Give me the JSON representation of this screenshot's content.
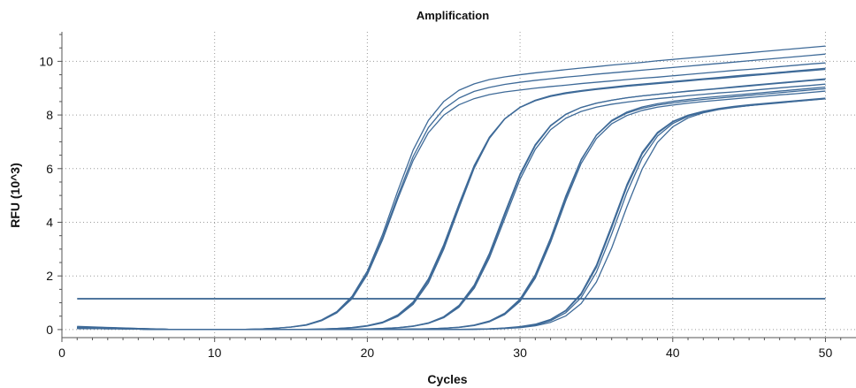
{
  "chart_data": {
    "type": "line",
    "title": "Amplification",
    "xlabel": "Cycles",
    "ylabel": "RFU (10^3)",
    "xlim": [
      0,
      52
    ],
    "ylim": [
      -0.3,
      11.1
    ],
    "xticks": [
      0,
      10,
      20,
      30,
      40,
      50
    ],
    "yticks": [
      0,
      2,
      4,
      6,
      8,
      10
    ],
    "grid": true,
    "legend": "none",
    "colors": {
      "curve": "#3e6a98",
      "threshold": "#15487f",
      "grid": "#9a9a9a",
      "axis": "#555555"
    },
    "threshold": {
      "value": 1.15,
      "x_range": [
        1,
        50
      ]
    },
    "x": [
      1,
      2,
      3,
      4,
      5,
      6,
      7,
      8,
      9,
      10,
      11,
      12,
      13,
      14,
      15,
      16,
      17,
      18,
      19,
      20,
      21,
      22,
      23,
      24,
      25,
      26,
      27,
      28,
      29,
      30,
      31,
      32,
      33,
      34,
      35,
      36,
      37,
      38,
      39,
      40,
      41,
      42,
      43,
      44,
      45,
      46,
      47,
      48,
      49,
      50
    ],
    "series": [
      {
        "values": [
          0.1,
          0.08,
          0.07,
          0.05,
          0.04,
          0.02,
          0.01,
          0,
          0,
          0,
          0,
          0.01,
          0.02,
          0.05,
          0.09,
          0.17,
          0.34,
          0.64,
          1.19,
          2.1,
          3.43,
          4.99,
          6.45,
          7.53,
          8.22,
          8.63,
          8.88,
          9.03,
          9.14,
          9.22,
          9.29,
          9.35,
          9.41,
          9.46,
          9.52,
          9.57,
          9.62,
          9.67,
          9.72,
          9.77,
          9.82,
          9.87,
          9.92,
          9.97,
          10.02,
          10.07,
          10.12,
          10.17,
          10.22,
          10.27
        ]
      },
      {
        "values": [
          0.07,
          0.06,
          0.05,
          0.04,
          0.03,
          0.02,
          0.01,
          0,
          0,
          0,
          0,
          0.01,
          0.02,
          0.05,
          0.1,
          0.18,
          0.36,
          0.67,
          1.24,
          2.18,
          3.55,
          5.18,
          6.69,
          7.8,
          8.5,
          8.92,
          9.16,
          9.32,
          9.42,
          9.5,
          9.57,
          9.63,
          9.69,
          9.75,
          9.8,
          9.86,
          9.91,
          9.96,
          10.02,
          10.07,
          10.12,
          10.17,
          10.22,
          10.27,
          10.32,
          10.37,
          10.42,
          10.47,
          10.52,
          10.57
        ]
      },
      {
        "values": [
          0.12,
          0.1,
          0.08,
          0.06,
          0.04,
          0.03,
          0.01,
          0,
          0,
          0,
          0,
          0.01,
          0.02,
          0.05,
          0.09,
          0.16,
          0.33,
          0.62,
          1.15,
          2.05,
          3.35,
          4.88,
          6.3,
          7.34,
          7.99,
          8.38,
          8.61,
          8.76,
          8.86,
          8.93,
          9,
          9.06,
          9.11,
          9.17,
          9.22,
          9.27,
          9.32,
          9.37,
          9.41,
          9.46,
          9.51,
          9.56,
          9.61,
          9.66,
          9.7,
          9.75,
          9.8,
          9.85,
          9.9,
          9.94
        ]
      },
      {
        "values": [
          0.05,
          0.05,
          0.04,
          0.03,
          0.02,
          0.01,
          0,
          0,
          0,
          0,
          0,
          0,
          0,
          0,
          0,
          0.01,
          0.02,
          0.04,
          0.08,
          0.15,
          0.28,
          0.55,
          1.03,
          1.89,
          3.16,
          4.68,
          6.12,
          7.18,
          7.86,
          8.28,
          8.53,
          8.69,
          8.8,
          8.88,
          8.95,
          9.01,
          9.07,
          9.12,
          9.17,
          9.22,
          9.27,
          9.32,
          9.36,
          9.41,
          9.46,
          9.51,
          9.56,
          9.61,
          9.65,
          9.7
        ]
      },
      {
        "values": [
          0.05,
          0.04,
          0.04,
          0.03,
          0.02,
          0.01,
          0,
          0,
          0,
          0,
          0,
          0,
          0,
          0,
          0,
          0.01,
          0.02,
          0.04,
          0.07,
          0.14,
          0.27,
          0.53,
          0.99,
          1.82,
          3.08,
          4.6,
          6.06,
          7.15,
          7.86,
          8.29,
          8.55,
          8.72,
          8.83,
          8.91,
          8.98,
          9.04,
          9.1,
          9.15,
          9.2,
          9.25,
          9.3,
          9.35,
          9.4,
          9.45,
          9.5,
          9.54,
          9.59,
          9.64,
          9.69,
          9.74
        ]
      },
      {
        "values": [
          0.05,
          0.04,
          0.04,
          0.03,
          0.02,
          0.01,
          0,
          0,
          0,
          0,
          0,
          0,
          0,
          0,
          0,
          0.01,
          0.01,
          0.03,
          0.06,
          0.13,
          0.25,
          0.49,
          0.94,
          1.74,
          2.99,
          4.53,
          6.02,
          7.13,
          7.85,
          8.28,
          8.54,
          8.71,
          8.82,
          8.9,
          8.96,
          9.02,
          9.08,
          9.13,
          9.18,
          9.23,
          9.28,
          9.33,
          9.38,
          9.43,
          9.47,
          9.52,
          9.57,
          9.62,
          9.67,
          9.71
        ]
      },
      {
        "values": [
          0.09,
          0.08,
          0.06,
          0.05,
          0.03,
          0.02,
          0.01,
          0,
          0,
          0,
          0,
          0,
          0,
          0,
          0,
          0,
          0,
          0,
          0.01,
          0.02,
          0.04,
          0.07,
          0.13,
          0.25,
          0.48,
          0.9,
          1.66,
          2.85,
          4.35,
          5.8,
          6.9,
          7.61,
          8.03,
          8.28,
          8.44,
          8.55,
          8.64,
          8.71,
          8.77,
          8.83,
          8.89,
          8.94,
          8.99,
          9.05,
          9.1,
          9.15,
          9.2,
          9.25,
          9.3,
          9.35
        ]
      },
      {
        "values": [
          0.07,
          0.06,
          0.05,
          0.04,
          0.03,
          0.02,
          0.01,
          0,
          0,
          0,
          0,
          0,
          0,
          0,
          0,
          0,
          0,
          0,
          0.01,
          0.02,
          0.04,
          0.07,
          0.13,
          0.24,
          0.46,
          0.86,
          1.6,
          2.77,
          4.27,
          5.74,
          6.86,
          7.59,
          8.02,
          8.28,
          8.44,
          8.55,
          8.64,
          8.71,
          8.77,
          8.83,
          8.88,
          8.93,
          8.98,
          9.03,
          9.08,
          9.13,
          9.18,
          9.23,
          9.28,
          9.32
        ]
      },
      {
        "values": [
          0.05,
          0.05,
          0.04,
          0.03,
          0.02,
          0.01,
          0,
          0,
          0,
          0,
          0,
          0,
          0,
          0,
          0,
          0,
          0,
          0,
          0.01,
          0.02,
          0.03,
          0.06,
          0.12,
          0.23,
          0.44,
          0.83,
          1.54,
          2.68,
          4.14,
          5.6,
          6.72,
          7.45,
          7.88,
          8.13,
          8.29,
          8.4,
          8.48,
          8.55,
          8.61,
          8.66,
          8.72,
          8.77,
          8.82,
          8.86,
          8.91,
          8.96,
          9.01,
          9.06,
          9.1,
          9.15
        ]
      },
      {
        "values": [
          0.04,
          0.04,
          0.03,
          0.03,
          0.02,
          0.01,
          0,
          0,
          0,
          0,
          0,
          0,
          0,
          0,
          0,
          0,
          0,
          0,
          0,
          0,
          0,
          0.01,
          0.02,
          0.03,
          0.05,
          0.09,
          0.17,
          0.32,
          0.61,
          1.14,
          2.05,
          3.41,
          4.99,
          6.34,
          7.24,
          7.77,
          8.07,
          8.25,
          8.37,
          8.45,
          8.52,
          8.58,
          8.63,
          8.68,
          8.73,
          8.78,
          8.83,
          8.88,
          8.93,
          8.98
        ]
      },
      {
        "values": [
          0.04,
          0.04,
          0.03,
          0.03,
          0.02,
          0.01,
          0,
          0,
          0,
          0,
          0,
          0,
          0,
          0,
          0,
          0,
          0,
          0,
          0,
          0,
          0,
          0.01,
          0.02,
          0.03,
          0.05,
          0.08,
          0.16,
          0.31,
          0.59,
          1.1,
          1.99,
          3.34,
          4.92,
          6.31,
          7.25,
          7.8,
          8.11,
          8.3,
          8.42,
          8.51,
          8.58,
          8.64,
          8.69,
          8.74,
          8.79,
          8.84,
          8.89,
          8.94,
          8.99,
          9.04
        ]
      },
      {
        "values": [
          0.06,
          0.05,
          0.04,
          0.03,
          0.02,
          0.01,
          0,
          0,
          0,
          0,
          0,
          0,
          0,
          0,
          0,
          0,
          0,
          0,
          0,
          0,
          0,
          0.01,
          0.02,
          0.03,
          0.05,
          0.08,
          0.15,
          0.29,
          0.56,
          1.05,
          1.92,
          3.25,
          4.81,
          6.19,
          7.12,
          7.67,
          7.98,
          8.17,
          8.29,
          8.37,
          8.44,
          8.5,
          8.55,
          8.6,
          8.65,
          8.7,
          8.75,
          8.79,
          8.84,
          8.89
        ]
      },
      {
        "values": [
          0.1,
          0.09,
          0.07,
          0.05,
          0.04,
          0.02,
          0.01,
          0,
          0,
          0,
          0,
          0,
          0,
          0,
          0,
          0,
          0,
          0,
          0,
          0,
          0,
          0,
          0,
          0,
          0,
          0.01,
          0.02,
          0.03,
          0.06,
          0.11,
          0.2,
          0.38,
          0.72,
          1.35,
          2.4,
          3.88,
          5.41,
          6.61,
          7.35,
          7.76,
          7.99,
          8.13,
          8.22,
          8.29,
          8.35,
          8.4,
          8.45,
          8.5,
          8.55,
          8.6
        ]
      },
      {
        "values": [
          0.07,
          0.06,
          0.05,
          0.04,
          0.03,
          0.02,
          0.01,
          0,
          0,
          0,
          0,
          0,
          0,
          0,
          0,
          0,
          0,
          0,
          0,
          0,
          0,
          0,
          0,
          0,
          0,
          0.01,
          0.01,
          0.03,
          0.05,
          0.1,
          0.19,
          0.37,
          0.7,
          1.3,
          2.32,
          3.79,
          5.33,
          6.55,
          7.31,
          7.74,
          7.99,
          8.14,
          8.24,
          8.32,
          8.38,
          8.43,
          8.48,
          8.53,
          8.58,
          8.63
        ]
      },
      {
        "values": [
          0.05,
          0.05,
          0.04,
          0.03,
          0.02,
          0.01,
          0,
          0,
          0,
          0,
          0,
          0,
          0,
          0,
          0,
          0,
          0,
          0,
          0,
          0,
          0,
          0,
          0,
          0,
          0,
          0.01,
          0.01,
          0.02,
          0.05,
          0.09,
          0.17,
          0.33,
          0.63,
          1.19,
          2.14,
          3.56,
          5.11,
          6.39,
          7.21,
          7.68,
          7.95,
          8.11,
          8.21,
          8.29,
          8.35,
          8.41,
          8.46,
          8.51,
          8.56,
          8.61
        ]
      },
      {
        "values": [
          0.04,
          0.04,
          0.03,
          0.03,
          0.02,
          0.01,
          0,
          0,
          0,
          0,
          0,
          0,
          0,
          0,
          0,
          0,
          0,
          0,
          0,
          0,
          0,
          0,
          0,
          0,
          0,
          0,
          0.01,
          0.02,
          0.04,
          0.07,
          0.14,
          0.27,
          0.51,
          0.97,
          1.77,
          3.04,
          4.58,
          5.99,
          6.98,
          7.56,
          7.89,
          8.08,
          8.2,
          8.28,
          8.35,
          8.41,
          8.46,
          8.51,
          8.56,
          8.61
        ]
      }
    ]
  }
}
